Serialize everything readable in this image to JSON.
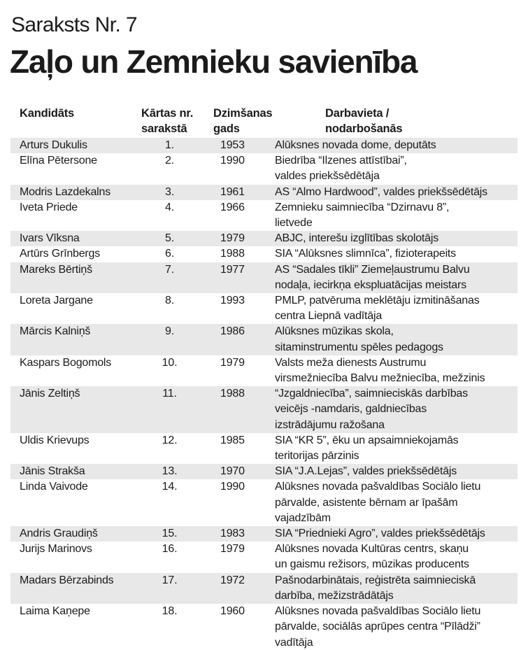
{
  "header": {
    "list_label": "Saraksts Nr. 7",
    "title": "Zaļo un Zemnieku savienība"
  },
  "table": {
    "columns": [
      {
        "label": "Kandidāts"
      },
      {
        "label": "Kārtas nr.\nsarakstā"
      },
      {
        "label": "Dzimšanas\ngads"
      },
      {
        "label": "Darbavieta /\nnodarbošanās"
      }
    ],
    "rows": [
      {
        "name": "Arturs Dukulis",
        "order": "1.",
        "year": "1953",
        "occupation": "Alūksnes novada dome, deputāts"
      },
      {
        "name": "Elīna Pētersone",
        "order": "2.",
        "year": "1990",
        "occupation": "Biedrība “Ilzenes attīstībai”,\nvaldes priekšsēdētāja"
      },
      {
        "name": "Modris Lazdekalns",
        "order": "3.",
        "year": "1961",
        "occupation": "AS “Almo Hardwood”, valdes priekšsēdētājs"
      },
      {
        "name": "Iveta Priede",
        "order": "4.",
        "year": "1966",
        "occupation": "Zemnieku saimniecība “Dzirnavu 8”,\nlietvede"
      },
      {
        "name": "Ivars Vīksna",
        "order": "5.",
        "year": "1979",
        "occupation": "ABJC, interešu izglītības skolotājs"
      },
      {
        "name": "Artūrs Grīnbergs",
        "order": "6.",
        "year": "1988",
        "occupation": "SIA “Alūksnes slimnīca”, fizioterapeits"
      },
      {
        "name": "Mareks Bērtiņš",
        "order": "7.",
        "year": "1977",
        "occupation": "AS “Sadales tīkli” Ziemeļaustrumu Balvu\nnodaļa, iecirkņa ekspluatācijas meistars"
      },
      {
        "name": "Loreta Jargane",
        "order": "8.",
        "year": "1993",
        "occupation": "PMLP, patvēruma meklētāju izmitināšanas\ncentra Liepnā vadītāja"
      },
      {
        "name": "Mārcis Kalniņš",
        "order": "9.",
        "year": "1986",
        "occupation": "Alūksnes mūzikas skola,\nsitaminstrumentu spēles pedagogs"
      },
      {
        "name": "Kaspars Bogomols",
        "order": "10.",
        "year": "1979",
        "occupation": "Valsts meža dienests Austrumu\nvirsmežniecība Balvu mežniecība, mežzinis"
      },
      {
        "name": "Jānis Zeltiņš",
        "order": "11.",
        "year": "1988",
        "occupation": "“Jzgaldniecība”, saimnieciskās darbības\nveicējs -namdaris, galdniecības\nizstrādājumu ražošana"
      },
      {
        "name": "Uldis Krievups",
        "order": "12.",
        "year": "1985",
        "occupation": "SIA “KR 5”, ēku un apsaimniekojamās\nteritorijas pārzinis"
      },
      {
        "name": "Jānis Strakša",
        "order": "13.",
        "year": "1970",
        "occupation": "SIA “J.A.Lejas”, valdes priekšsēdētājs"
      },
      {
        "name": "Linda Vaivode",
        "order": "14.",
        "year": "1990",
        "occupation": "Alūksnes novada pašvaldības Sociālo lietu\npārvalde, asistente bērnam ar īpašām\nvajadzībām"
      },
      {
        "name": "Andris Graudiņš",
        "order": "15.",
        "year": "1983",
        "occupation": "SIA “Priednieki Agro”, valdes priekšsēdētājs"
      },
      {
        "name": "Jurijs Marinovs",
        "order": "16.",
        "year": "1979",
        "occupation": "Alūksnes novada Kultūras centrs, skaņu\nun gaismu režisors, mūzikas producents"
      },
      {
        "name": "Madars Bērzabinds",
        "order": "17.",
        "year": "1972",
        "occupation": "Pašnodarbinātais, reģistrēta saimnieciskā\ndarbība, mežizstrādātājs"
      },
      {
        "name": "Laima Kaņepe",
        "order": "18.",
        "year": "1960",
        "occupation": "Alūksnes novada pašvaldības Sociālo lietu\npārvalde, sociālās aprūpes centra “Pīlādži”\nvadītāja"
      }
    ]
  },
  "colors": {
    "row_shade": "#e8e8e8",
    "text": "#1b1b1b",
    "background": "#ffffff"
  }
}
